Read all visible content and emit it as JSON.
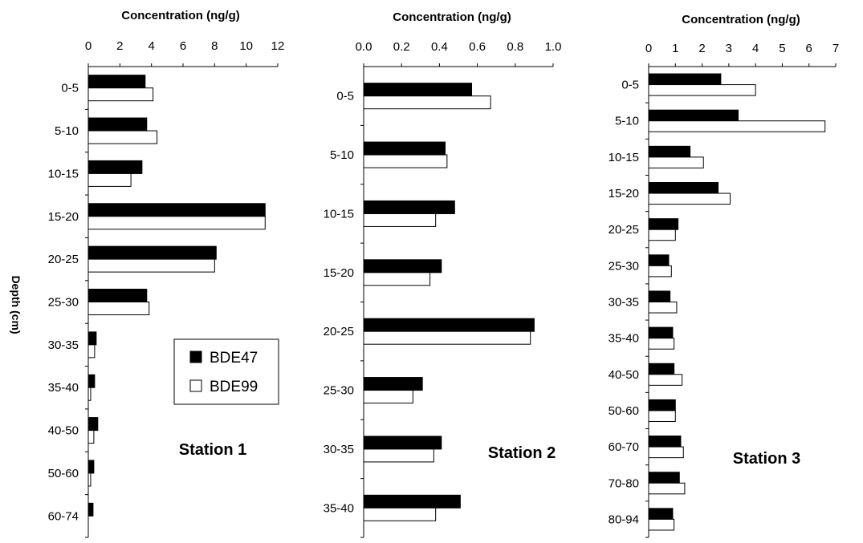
{
  "y_axis_label": "Depth (cm)",
  "legend": [
    {
      "name": "BDE47",
      "color": "#000000"
    },
    {
      "name": "BDE99",
      "color": "#ffffff"
    }
  ],
  "chart_data": [
    {
      "type": "bar",
      "orientation": "horizontal",
      "title": "Concentration (ng/g)",
      "station_label": "Station 1",
      "xlim": [
        0,
        12
      ],
      "xticks": [
        "0",
        "2",
        "4",
        "6",
        "8",
        "10",
        "12"
      ],
      "categories": [
        "0-5",
        "5-10",
        "10-15",
        "15-20",
        "20-25",
        "25-30",
        "30-35",
        "35-40",
        "40-50",
        "50-60",
        "60-74"
      ],
      "series": [
        {
          "name": "BDE47",
          "values": [
            3.6,
            3.7,
            3.4,
            11.2,
            8.1,
            3.7,
            0.5,
            0.4,
            0.6,
            0.35,
            0.3
          ]
        },
        {
          "name": "BDE99",
          "values": [
            4.1,
            4.35,
            2.7,
            11.2,
            8.0,
            3.85,
            0.4,
            0.15,
            0.35,
            0.15,
            0
          ]
        }
      ]
    },
    {
      "type": "bar",
      "orientation": "horizontal",
      "title": "Concentration (ng/g)",
      "station_label": "Station 2",
      "xlim": [
        0,
        1.0
      ],
      "xticks": [
        "0.0",
        "0.2",
        "0.4",
        "0.6",
        "0.8",
        "1.0"
      ],
      "categories": [
        "0-5",
        "5-10",
        "10-15",
        "15-20",
        "20-25",
        "25-30",
        "30-35",
        "35-40"
      ],
      "series": [
        {
          "name": "BDE47",
          "values": [
            0.57,
            0.43,
            0.48,
            0.41,
            0.9,
            0.31,
            0.41,
            0.51
          ]
        },
        {
          "name": "BDE99",
          "values": [
            0.67,
            0.44,
            0.38,
            0.35,
            0.88,
            0.26,
            0.37,
            0.38
          ]
        }
      ]
    },
    {
      "type": "bar",
      "orientation": "horizontal",
      "title": "Concentration (ng/g)",
      "station_label": "Station 3",
      "xlim": [
        0,
        7
      ],
      "xticks": [
        "0",
        "1",
        "2",
        "3",
        "4",
        "5",
        "6",
        "7"
      ],
      "categories": [
        "0-5",
        "5-10",
        "10-15",
        "15-20",
        "20-25",
        "25-30",
        "30-35",
        "35-40",
        "40-50",
        "50-60",
        "60-70",
        "70-80",
        "80-94"
      ],
      "series": [
        {
          "name": "BDE47",
          "values": [
            2.7,
            3.35,
            1.55,
            2.6,
            1.1,
            0.75,
            0.8,
            0.9,
            0.95,
            1.0,
            1.2,
            1.15,
            0.9
          ]
        },
        {
          "name": "BDE99",
          "values": [
            4.0,
            6.6,
            2.05,
            3.05,
            1.0,
            0.85,
            1.05,
            0.95,
            1.25,
            1.0,
            1.3,
            1.35,
            0.95
          ]
        }
      ]
    }
  ]
}
